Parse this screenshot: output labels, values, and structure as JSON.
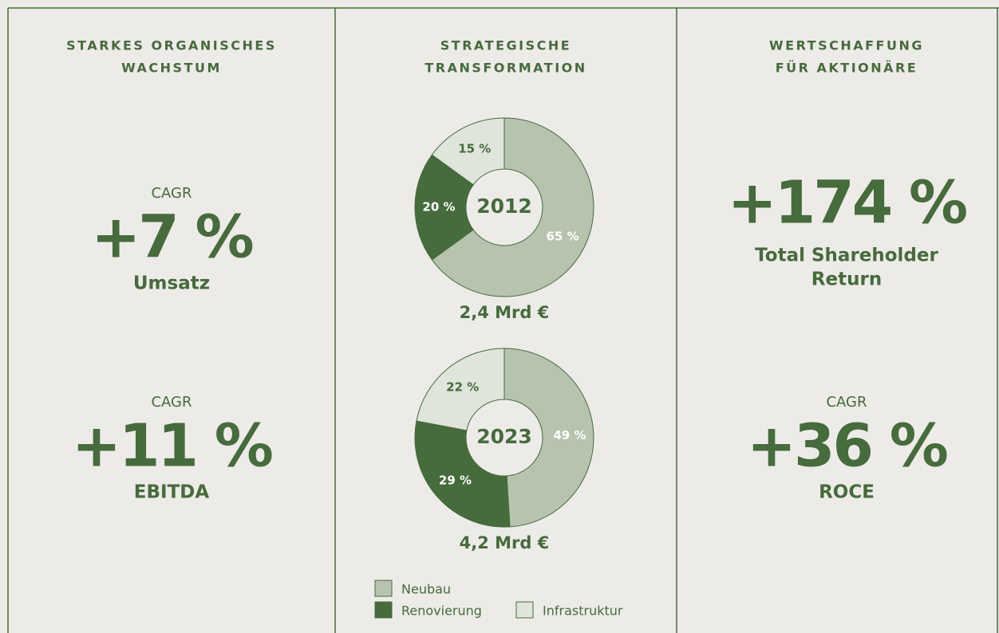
{
  "columns": [
    {
      "title_lines": [
        "STARKES ORGANISCHES",
        "WACHSTUM"
      ],
      "metrics": [
        {
          "label": "CAGR",
          "value": "+7 %",
          "name_lines": [
            "Umsatz"
          ]
        },
        {
          "label": "CAGR",
          "value": "+11 %",
          "name_lines": [
            "EBITDA"
          ]
        }
      ]
    },
    {
      "title_lines": [
        "STRATEGISCHE",
        "TRANSFORMATION"
      ]
    },
    {
      "title_lines": [
        "WERTSCHAFFUNG",
        "FÜR AKTIONÄRE"
      ],
      "metrics": [
        {
          "value": "+174 %",
          "name_lines": [
            "Total Shareholder",
            "Return"
          ]
        },
        {
          "label": "CAGR",
          "value": "+36 %",
          "name_lines": [
            "ROCE"
          ]
        }
      ]
    }
  ],
  "chart_data": [
    {
      "type": "pie",
      "center_label": "2012",
      "caption": "2,4 Mrd €",
      "categories": [
        "Neubau",
        "Renovierung",
        "Infrastruktur"
      ],
      "values": [
        65,
        20,
        15
      ],
      "value_labels": [
        "65 %",
        "20 %",
        "15 %"
      ],
      "colors": [
        "#b6c4ae",
        "#466b3c",
        "#dfe5da"
      ]
    },
    {
      "type": "pie",
      "center_label": "2023",
      "caption": "4,2 Mrd €",
      "categories": [
        "Neubau",
        "Renovierung",
        "Infrastruktur"
      ],
      "values": [
        49,
        29,
        22
      ],
      "value_labels": [
        "49 %",
        "29 %",
        "22 %"
      ],
      "colors": [
        "#b6c4ae",
        "#466b3c",
        "#dfe5da"
      ]
    }
  ]
}
